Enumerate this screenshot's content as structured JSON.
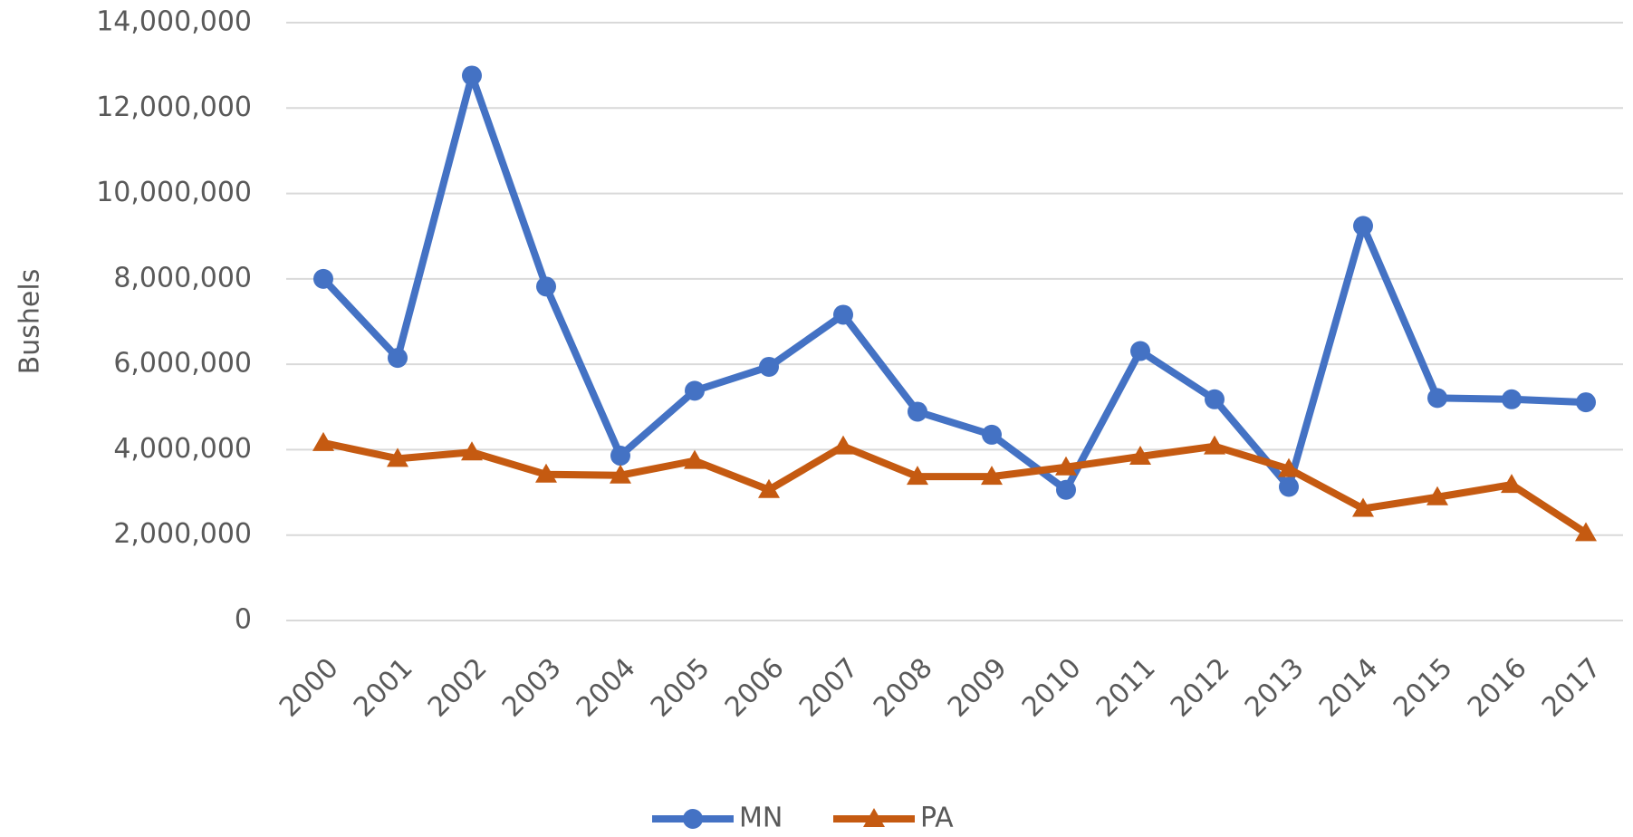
{
  "chart_data": {
    "type": "line",
    "y_label": "Bushels",
    "categories": [
      "2000",
      "2001",
      "2002",
      "2003",
      "2004",
      "2005",
      "2006",
      "2007",
      "2008",
      "2009",
      "2010",
      "2011",
      "2012",
      "2013",
      "2014",
      "2015",
      "2016",
      "2017"
    ],
    "series": [
      {
        "name": "MN",
        "color": "#4472c4",
        "marker": "circle",
        "values": [
          8000000,
          6150000,
          12760000,
          7820000,
          3860000,
          5380000,
          5940000,
          7160000,
          4890000,
          4350000,
          3060000,
          6310000,
          5180000,
          3130000,
          9240000,
          5210000,
          5180000,
          5110000
        ]
      },
      {
        "name": "PA",
        "color": "#c55a11",
        "marker": "triangle",
        "values": [
          4160000,
          3790000,
          3940000,
          3420000,
          3400000,
          3740000,
          3060000,
          4080000,
          3370000,
          3370000,
          3590000,
          3840000,
          4080000,
          3550000,
          2620000,
          2890000,
          3180000,
          2050000
        ]
      }
    ],
    "ylim": [
      0,
      14000000
    ],
    "yticks": [
      0,
      {
        "value": 2000000,
        "label": "2,000,000"
      },
      {
        "value": 4000000,
        "label": "4,000,000"
      },
      {
        "value": 6000000,
        "label": "6,000,000"
      },
      {
        "value": 8000000,
        "label": "8,000,000"
      },
      {
        "value": 10000000,
        "label": "10,000,000"
      },
      {
        "value": 12000000,
        "label": "12,000,000"
      },
      {
        "value": 14000000,
        "label": "14,000,000"
      }
    ],
    "grid": true,
    "legend": "bottom"
  }
}
